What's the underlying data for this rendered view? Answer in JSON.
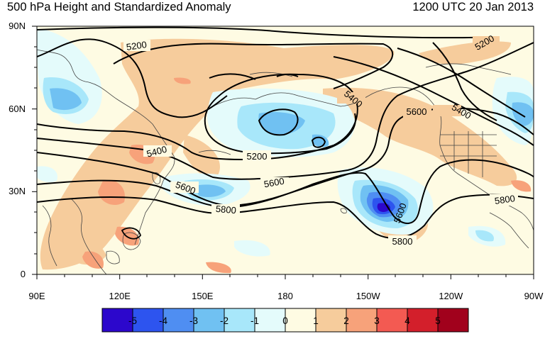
{
  "title": {
    "left": "500 hPa Height and Standardized Anomaly",
    "right": "1200 UTC 20 Jan 2013"
  },
  "axes": {
    "lat_labels": [
      "90N",
      "60N",
      "30N",
      "0"
    ],
    "lon_labels": [
      "90E",
      "120E",
      "150E",
      "180",
      "150W",
      "120W",
      "90W"
    ]
  },
  "contour_labels": {
    "c1": "5200",
    "c2": "5200",
    "c3": "5200",
    "c4": "5400",
    "c5": "5400",
    "c6": "5400",
    "c7": "5600",
    "c8": "5600",
    "c9": "5600",
    "c10": "5800",
    "c11": "5800",
    "c12": "5600",
    "c13": "5800"
  },
  "colorbar": {
    "labels": [
      "-5",
      "-4",
      "-3",
      "-2",
      "-1",
      "0",
      "1",
      "2",
      "3",
      "4",
      "5"
    ],
    "colors": [
      "#2c07cc",
      "#2d54ef",
      "#4f8ef2",
      "#70c1f2",
      "#a8e7fa",
      "#e4fbfb",
      "#fefbe3",
      "#f6cc9c",
      "#f7a27a",
      "#f35a52",
      "#d31f2b",
      "#a1011c"
    ]
  },
  "map_colors": {
    "background": "#fefbe3",
    "anomaly_pos1": "#f6cc9c",
    "anomaly_pos2": "#f7a27a",
    "anomaly_neg1": "#e4fbfb",
    "anomaly_neg2": "#a8e7fa",
    "anomaly_neg3": "#70c1f2",
    "anomaly_neg4": "#4f8ef2",
    "anomaly_neg5": "#2d54ef",
    "anomaly_neg6": "#2c07cc",
    "coastline": "#444444",
    "height_contour": "#000000"
  }
}
